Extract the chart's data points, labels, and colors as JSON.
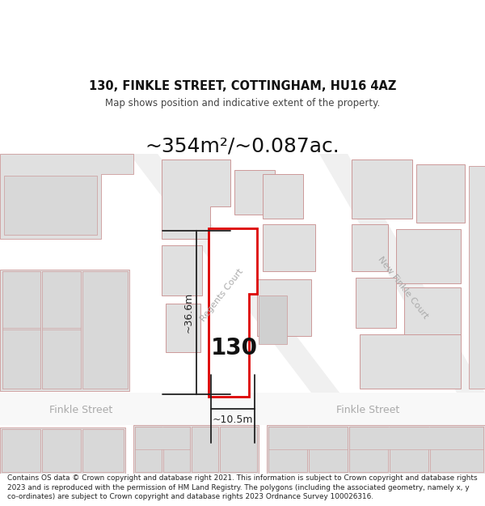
{
  "title": "130, FINKLE STREET, COTTINGHAM, HU16 4AZ",
  "subtitle": "Map shows position and indicative extent of the property.",
  "area_text": "~354m²/~0.087ac.",
  "label_130": "130",
  "dim_height": "~36.6m",
  "dim_width": "~10.5m",
  "street_left": "Finkle Street",
  "street_right": "Finkle Street",
  "street_regents": "Regents Court",
  "street_newfinkle": "New Finkle Court",
  "footer": "Contains OS data © Crown copyright and database right 2021. This information is subject to Crown copyright and database rights 2023 and is reproduced with the permission of HM Land Registry. The polygons (including the associated geometry, namely x, y co-ordinates) are subject to Crown copyright and database rights 2023 Ordnance Survey 100026316.",
  "bg_color": "#ffffff",
  "map_bg": "#f0f0f0",
  "building_fill": "#e0e0e0",
  "building_edge": "#cc9999",
  "highlight_fill": "#ffffff",
  "highlight_edge": "#dd0000",
  "dim_line_color": "#222222",
  "street_color": "#aaaaaa",
  "footer_color": "#222222",
  "title_color": "#111111",
  "area_color": "#111111"
}
